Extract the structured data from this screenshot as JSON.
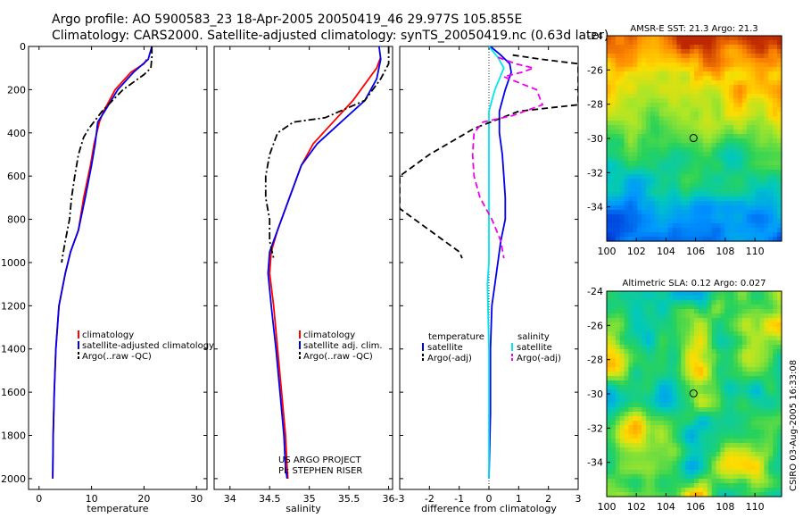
{
  "title": {
    "line1": "Argo profile: AO 5900583_23 18-Apr-2005 20050419_46 29.977S 105.855E",
    "line2": "Climatology: CARS2000. Satellite-adjusted climatology: synTS_20050419.nc (0.63d later)"
  },
  "credits": {
    "project": "US ARGO PROJECT",
    "pi": "PI: STEPHEN RISER",
    "stamp": "CSIRO 03-Aug-2005 16:33:08"
  },
  "colors": {
    "climatology_temp": "#ff0000",
    "satellite": "#0000ee",
    "argo": "#000000",
    "salinity_sat": "#00e5ee",
    "salinity_argo": "#ee00ee"
  },
  "chart_data": [
    {
      "type": "line",
      "name": "temperature-profile",
      "xlabel": "temperature",
      "ylabel": "",
      "xlim": [
        -2,
        32
      ],
      "ylim": [
        2050,
        0
      ],
      "y_inverted": true,
      "xticks": [
        0,
        10,
        20,
        30
      ],
      "yticks": [
        0,
        200,
        400,
        600,
        800,
        1000,
        1200,
        1400,
        1600,
        1800,
        2000
      ],
      "legend": [
        "climatology",
        "satellite-adjusted climatology",
        "Argo(..raw -QC)"
      ],
      "legend_position": "lower-right",
      "series": [
        {
          "name": "climatology",
          "color": "#ff0000",
          "dash": "solid",
          "x": [
            20.5,
            20.0,
            17.5,
            14.5,
            12.3,
            11.5,
            10.5,
            9.8,
            8.5,
            7.5,
            6.0,
            5.0,
            3.8,
            3.2,
            2.9,
            2.7,
            2.6
          ],
          "y": [
            60,
            80,
            120,
            200,
            300,
            350,
            450,
            550,
            700,
            850,
            950,
            1050,
            1200,
            1400,
            1600,
            1800,
            2000
          ]
        },
        {
          "name": "satellite-adjusted climatology",
          "color": "#0000ee",
          "dash": "solid",
          "x": [
            21.5,
            20.8,
            18.0,
            15.0,
            12.5,
            11.2,
            10.7,
            10.0,
            8.8,
            7.5,
            6.0,
            5.0,
            3.8,
            3.2,
            2.9,
            2.7,
            2.6
          ],
          "y": [
            0,
            60,
            120,
            200,
            300,
            350,
            450,
            550,
            700,
            850,
            950,
            1050,
            1200,
            1400,
            1600,
            1800,
            2000
          ]
        },
        {
          "name": "Argo(..raw -QC)",
          "color": "#000000",
          "dash": "dashdot",
          "x": [
            21.5,
            21.5,
            21.3,
            20.0,
            16.0,
            12.0,
            9.5,
            8.5,
            7.5,
            6.8,
            6.2,
            5.8,
            5.0,
            4.5,
            4.3
          ],
          "y": [
            0,
            50,
            100,
            130,
            200,
            300,
            380,
            420,
            500,
            600,
            700,
            800,
            900,
            970,
            1000
          ]
        }
      ]
    },
    {
      "type": "line",
      "name": "salinity-profile",
      "xlabel": "salinity",
      "ylabel": "",
      "xlim": [
        33.8,
        36.05
      ],
      "ylim": [
        2050,
        0
      ],
      "y_inverted": true,
      "xticks": [
        34,
        34.5,
        35,
        35.5,
        36
      ],
      "legend": [
        "climatology",
        "satellite adj. clim.",
        "Argo(..raw -QC)"
      ],
      "legend_position": "lower-right",
      "series": [
        {
          "name": "climatology",
          "color": "#ff0000",
          "dash": "solid",
          "x": [
            35.9,
            35.85,
            35.75,
            35.55,
            35.3,
            35.05,
            34.9,
            34.75,
            34.6,
            34.52,
            34.5,
            34.55,
            34.6,
            34.65,
            34.7,
            34.72,
            34.73
          ],
          "y": [
            50,
            100,
            150,
            250,
            350,
            450,
            550,
            700,
            850,
            950,
            1050,
            1200,
            1400,
            1600,
            1800,
            1950,
            2000
          ]
        },
        {
          "name": "satellite adj. clim.",
          "color": "#0000ee",
          "dash": "solid",
          "x": [
            35.88,
            35.9,
            35.85,
            35.7,
            35.4,
            35.1,
            34.9,
            34.75,
            34.6,
            34.5,
            34.48,
            34.52,
            34.58,
            34.63,
            34.68,
            34.7,
            34.72
          ],
          "y": [
            0,
            60,
            150,
            250,
            350,
            450,
            550,
            700,
            850,
            950,
            1050,
            1200,
            1400,
            1600,
            1800,
            1950,
            2000
          ]
        },
        {
          "name": "Argo(..raw -QC)",
          "color": "#000000",
          "dash": "dashdot",
          "x": [
            36.0,
            36.0,
            35.9,
            35.7,
            35.2,
            34.8,
            34.6,
            34.5,
            34.45,
            34.45,
            34.5,
            34.5,
            34.55
          ],
          "y": [
            0,
            80,
            150,
            250,
            330,
            350,
            400,
            500,
            600,
            700,
            800,
            900,
            980
          ]
        }
      ]
    },
    {
      "type": "line",
      "name": "difference-profile",
      "xlabel": "difference from climatology",
      "ylabel": "",
      "xlim": [
        -3,
        3
      ],
      "ylim": [
        2050,
        0
      ],
      "y_inverted": true,
      "xticks": [
        -3,
        -2,
        -1,
        0,
        1,
        2,
        3
      ],
      "legend": [
        "temperature",
        "satellite",
        "Argo(-adj)",
        "salinity",
        "satellite",
        "Argo(-adj)"
      ],
      "legend_position": "lower-center",
      "series": [
        {
          "name": "temperature satellite",
          "color": "#0000ee",
          "dash": "solid",
          "x": [
            0.05,
            0.4,
            0.7,
            0.75,
            0.55,
            0.35,
            0.35,
            0.45,
            0.5,
            0.55,
            0.55,
            0.4,
            0.3,
            0.2,
            0.1,
            0.05,
            0.05,
            0.0
          ],
          "y": [
            0,
            40,
            80,
            120,
            200,
            300,
            400,
            500,
            600,
            700,
            800,
            900,
            1000,
            1100,
            1200,
            1400,
            1700,
            2000
          ]
        },
        {
          "name": "salinity satellite",
          "color": "#00e5ee",
          "dash": "solid",
          "x": [
            0.0,
            0.3,
            0.5,
            0.35,
            0.2,
            0.1,
            0.0,
            0.0,
            0.0,
            0.0,
            0.0,
            -0.05,
            0.0,
            0.0,
            0.0
          ],
          "y": [
            0,
            50,
            100,
            150,
            200,
            250,
            300,
            400,
            600,
            800,
            1000,
            1100,
            1400,
            1700,
            2000
          ]
        },
        {
          "name": "temperature Argo(-adj)",
          "color": "#000000",
          "dash": "dashed",
          "x": [
            0.8,
            1.8,
            3.0,
            3.0,
            1.0,
            -0.5,
            -2.0,
            -3.0,
            -3.0,
            -2.0,
            -1.0,
            -0.9
          ],
          "y": [
            40,
            60,
            80,
            270,
            300,
            380,
            500,
            600,
            750,
            850,
            950,
            980
          ]
        },
        {
          "name": "salinity Argo(-adj)",
          "color": "#ee00ee",
          "dash": "dashed",
          "x": [
            0.3,
            0.9,
            1.5,
            1.1,
            0.5,
            1.6,
            1.8,
            0.8,
            -0.2,
            -0.5,
            -0.55,
            -0.5,
            -0.3,
            0.1,
            0.4,
            0.5
          ],
          "y": [
            50,
            80,
            100,
            120,
            140,
            200,
            270,
            320,
            350,
            400,
            500,
            600,
            700,
            800,
            900,
            980
          ]
        }
      ]
    },
    {
      "type": "heatmap",
      "name": "sst-map",
      "title": "AMSR-E SST: 21.3 Argo: 21.3",
      "xlim": [
        100,
        111.8
      ],
      "ylim": [
        -36,
        -24
      ],
      "xticks": [
        100,
        102,
        104,
        106,
        108,
        110
      ],
      "yticks": [
        -24,
        -26,
        -28,
        -30,
        -32,
        -34
      ],
      "marker": {
        "lon": 105.855,
        "lat": -29.977
      }
    },
    {
      "type": "heatmap",
      "name": "sla-map",
      "title": "Altimetric SLA: 0.12 Argo: 0.027",
      "xlim": [
        100,
        111.8
      ],
      "ylim": [
        -36,
        -24
      ],
      "xticks": [
        100,
        102,
        104,
        106,
        108,
        110
      ],
      "yticks": [
        -24,
        -26,
        -28,
        -30,
        -32,
        -34
      ],
      "marker": {
        "lon": 105.855,
        "lat": -29.977
      }
    }
  ]
}
